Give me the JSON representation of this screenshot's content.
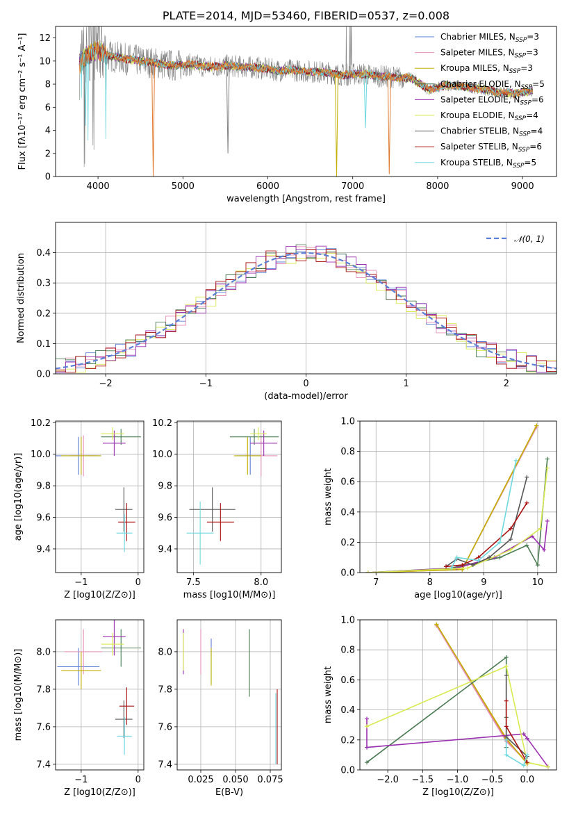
{
  "colors": {
    "Chabrier MILES": "#5b7fd6",
    "Salpeter MILES": "#e88fb8",
    "Kroupa MILES": "#c2b000",
    "Chabrier ELODIE": "#4a7a52",
    "Salpeter ELODIE": "#9a2eb0",
    "Kroupa ELODIE": "#d8ea50",
    "Chabrier STELIB": "#555555",
    "Salpeter STELIB": "#aa1010",
    "Kroupa STELIB": "#6ed8e0",
    "orange_model": "#e07a30",
    "data": "#808080",
    "normal": "#5b7fd6"
  },
  "chart_data": [
    {
      "type": "line",
      "title": "PLATE=2014, MJD=53460, FIBERID=0537, z=0.008",
      "xlabel": "wavelength [Angstrom, rest frame]",
      "ylabel": "Flux [fλ10⁻¹⁷ erg cm⁻² s⁻¹ A⁻¹]",
      "xlim": [
        3500,
        9400
      ],
      "ylim": [
        0,
        13
      ],
      "xticks": [
        "4000",
        "5000",
        "6000",
        "7000",
        "8000",
        "9000"
      ],
      "yticks": [
        "0",
        "2",
        "4",
        "6",
        "8",
        "10",
        "12"
      ],
      "legend_position": "top-right",
      "legend": [
        {
          "model": "Chabrier MILES",
          "n": "3"
        },
        {
          "model": "Salpeter MILES",
          "n": "3"
        },
        {
          "model": "Kroupa MILES",
          "n": "3"
        },
        {
          "model": "Chabrier ELODIE",
          "n": "5"
        },
        {
          "model": "Salpeter ELODIE",
          "n": "6"
        },
        {
          "model": "Kroupa ELODIE",
          "n": "4"
        },
        {
          "model": "Chabrier STELIB",
          "n": "4"
        },
        {
          "model": "Salpeter STELIB",
          "n": "6"
        },
        {
          "model": "Kroupa STELIB",
          "n": "5"
        }
      ],
      "continuum": {
        "x": [
          3780,
          3900,
          4000,
          4100,
          4300,
          4500,
          4700,
          4900,
          5100,
          5300,
          5500,
          5700,
          5900,
          6100,
          6300,
          6500,
          6700,
          6900,
          7100,
          7300,
          7500,
          7700,
          7900,
          8100,
          8300,
          8500,
          8700,
          8900,
          9100
        ],
        "y": [
          9.8,
          10.6,
          11.0,
          10.5,
          10.2,
          10.0,
          9.8,
          9.6,
          9.7,
          9.5,
          9.6,
          9.5,
          9.4,
          9.2,
          9.2,
          9.1,
          9.0,
          8.8,
          8.9,
          8.7,
          8.6,
          8.5,
          7.5,
          7.9,
          7.8,
          7.6,
          7.3,
          7.2,
          7.4
        ]
      },
      "dips": [
        {
          "model": "orange_model",
          "x": 4650,
          "y": 0.0
        },
        {
          "model": "Kroupa MILES",
          "x": 6810,
          "y": 0.0
        },
        {
          "model": "orange_model",
          "x": 7430,
          "y": 0.2
        },
        {
          "model": "Kroupa STELIB",
          "x": 7150,
          "y": 4.2
        },
        {
          "model": "data",
          "x": 5530,
          "y": 2.0
        }
      ],
      "grid": false
    },
    {
      "type": "line",
      "xlabel": "(data-model)/error",
      "ylabel": "Normed distribution",
      "xlim": [
        -2.5,
        2.5
      ],
      "ylim": [
        0,
        0.5
      ],
      "xticks": [
        "−2",
        "−1",
        "0",
        "1",
        "2"
      ],
      "yticks": [
        "0.0",
        "0.1",
        "0.2",
        "0.3",
        "0.4"
      ],
      "legend": [
        "𝒩(0, 1)"
      ],
      "legend_position": "top-right",
      "grid": true,
      "histogram_bin_width": 0.1,
      "series": [
        {
          "model": "Chabrier MILES",
          "shift": 0.0
        },
        {
          "model": "Salpeter MILES",
          "shift": 0.02
        },
        {
          "model": "Kroupa ELODIE",
          "shift": -0.01
        },
        {
          "model": "Chabrier ELODIE",
          "shift": 0.015
        },
        {
          "model": "Salpeter ELODIE",
          "shift": -0.02
        },
        {
          "model": "Salpeter STELIB",
          "shift": 0.01
        }
      ]
    },
    {
      "type": "scatter",
      "xlabel": "Z [log10(Z/Z⊙)]",
      "ylabel": "age  [log10(age/yr)]",
      "xlim": [
        -1.45,
        0.1
      ],
      "ylim": [
        9.25,
        10.21
      ],
      "xticks": [
        "−1",
        "0"
      ],
      "yticks": [
        "9.4",
        "9.6",
        "9.8",
        "10.0",
        "10.2"
      ],
      "grid": true,
      "points": [
        {
          "model": "Chabrier MILES",
          "x": -1.05,
          "y": 9.99,
          "dx": 0.4,
          "dy": 0.12
        },
        {
          "model": "Salpeter MILES",
          "x": -0.96,
          "y": 9.99,
          "dx": 0.25,
          "dy": 0.13
        },
        {
          "model": "Kroupa MILES",
          "x": -1.0,
          "y": 9.99,
          "dx": 0.35,
          "dy": 0.12
        },
        {
          "model": "Chabrier ELODIE",
          "x": -0.3,
          "y": 10.11,
          "dx": 0.35,
          "dy": 0.05
        },
        {
          "model": "Salpeter ELODIE",
          "x": -0.42,
          "y": 10.07,
          "dx": 0.2,
          "dy": 0.08
        },
        {
          "model": "Kroupa ELODIE",
          "x": -0.45,
          "y": 10.13,
          "dx": 0.2,
          "dy": 0.04
        },
        {
          "model": "Chabrier STELIB",
          "x": -0.25,
          "y": 9.65,
          "dx": 0.15,
          "dy": 0.14
        },
        {
          "model": "Salpeter STELIB",
          "x": -0.2,
          "y": 9.57,
          "dx": 0.15,
          "dy": 0.12
        },
        {
          "model": "Kroupa STELIB",
          "x": -0.24,
          "y": 9.5,
          "dx": 0.14,
          "dy": 0.12
        }
      ]
    },
    {
      "type": "scatter",
      "xlabel": "mass [log10(M/M⊙)]",
      "xlim": [
        7.38,
        8.15
      ],
      "ylim": [
        9.25,
        10.21
      ],
      "xticks": [
        "7.5",
        "8.0"
      ],
      "yticks": [
        "9.4",
        "9.6",
        "9.8",
        "10.0",
        "10.2"
      ],
      "grid": true,
      "points": [
        {
          "model": "Chabrier MILES",
          "x": 7.92,
          "y": 9.99,
          "dx": 0.1,
          "dy": 0.12
        },
        {
          "model": "Salpeter MILES",
          "x": 8.0,
          "y": 9.99,
          "dx": 0.12,
          "dy": 0.13
        },
        {
          "model": "Kroupa MILES",
          "x": 7.9,
          "y": 9.99,
          "dx": 0.1,
          "dy": 0.12
        },
        {
          "model": "Chabrier ELODIE",
          "x": 7.95,
          "y": 10.11,
          "dx": 0.18,
          "dy": 0.05
        },
        {
          "model": "Salpeter ELODIE",
          "x": 8.02,
          "y": 10.07,
          "dx": 0.1,
          "dy": 0.08
        },
        {
          "model": "Kroupa ELODIE",
          "x": 7.98,
          "y": 10.13,
          "dx": 0.06,
          "dy": 0.04
        },
        {
          "model": "Chabrier STELIB",
          "x": 7.64,
          "y": 9.65,
          "dx": 0.17,
          "dy": 0.14
        },
        {
          "model": "Salpeter STELIB",
          "x": 7.7,
          "y": 9.57,
          "dx": 0.1,
          "dy": 0.12
        },
        {
          "model": "Kroupa STELIB",
          "x": 7.55,
          "y": 9.5,
          "dx": 0.1,
          "dy": 0.2
        }
      ]
    },
    {
      "type": "line",
      "xlabel": "age  [log10(age/yr)]",
      "ylabel": "mass weight",
      "xlim": [
        6.7,
        10.35
      ],
      "ylim": [
        0,
        1
      ],
      "xticks": [
        "7",
        "8",
        "9",
        "10"
      ],
      "yticks": [
        "0.0",
        "0.2",
        "0.4",
        "0.6",
        "0.8",
        "1.0"
      ],
      "grid": true,
      "series": [
        {
          "model": "orange_model",
          "x": [
            6.85,
            8.6,
            9.98
          ],
          "y": [
            0.0,
            0.02,
            0.97
          ]
        },
        {
          "model": "Salpeter MILES",
          "x": [
            6.85,
            8.6,
            9.98
          ],
          "y": [
            0.0,
            0.02,
            0.96
          ]
        },
        {
          "model": "Kroupa MILES",
          "x": [
            6.85,
            8.6,
            9.98
          ],
          "y": [
            0.0,
            0.02,
            0.97
          ]
        },
        {
          "model": "Chabrier ELODIE",
          "x": [
            6.85,
            8.4,
            9.3,
            9.8,
            10.0,
            10.18
          ],
          "y": [
            0.0,
            0.03,
            0.1,
            0.18,
            0.05,
            0.75
          ]
        },
        {
          "model": "Salpeter ELODIE",
          "x": [
            6.85,
            8.5,
            9.2,
            9.9,
            10.12,
            10.18
          ],
          "y": [
            0.0,
            0.03,
            0.1,
            0.24,
            0.15,
            0.34
          ]
        },
        {
          "model": "Kroupa ELODIE",
          "x": [
            6.85,
            8.7,
            9.5,
            10.05,
            10.18
          ],
          "y": [
            0.0,
            0.03,
            0.15,
            0.29,
            0.69
          ]
        },
        {
          "model": "Chabrier STELIB",
          "x": [
            8.3,
            8.5,
            8.8,
            9.1,
            9.5,
            9.8
          ],
          "y": [
            0.04,
            0.09,
            0.05,
            0.1,
            0.22,
            0.63
          ]
        },
        {
          "model": "Salpeter STELIB",
          "x": [
            8.3,
            8.6,
            8.9,
            9.5,
            9.8
          ],
          "y": [
            0.04,
            0.05,
            0.1,
            0.29,
            0.46
          ]
        },
        {
          "model": "Kroupa STELIB",
          "x": [
            8.4,
            8.5,
            8.9,
            9.3,
            9.6
          ],
          "y": [
            0.03,
            0.1,
            0.08,
            0.2,
            0.74
          ]
        }
      ]
    },
    {
      "type": "scatter",
      "xlabel": "Z [log10(Z/Z⊙)]",
      "ylabel": "mass [log10(M/M⊙)]",
      "xlim": [
        -1.45,
        0.1
      ],
      "ylim": [
        7.37,
        8.17
      ],
      "xticks": [
        "−1",
        "0"
      ],
      "yticks": [
        "7.4",
        "7.6",
        "7.8",
        "8.0"
      ],
      "grid": true,
      "points": [
        {
          "model": "Chabrier MILES",
          "x": -1.05,
          "y": 7.92,
          "dx": 0.37,
          "dy": 0.1
        },
        {
          "model": "Salpeter MILES",
          "x": -0.96,
          "y": 8.0,
          "dx": 0.33,
          "dy": 0.12
        },
        {
          "model": "Kroupa MILES",
          "x": -1.0,
          "y": 7.9,
          "dx": 0.35,
          "dy": 0.1
        },
        {
          "model": "Chabrier ELODIE",
          "x": -0.3,
          "y": 8.02,
          "dx": 0.35,
          "dy": 0.1
        },
        {
          "model": "Salpeter ELODIE",
          "x": -0.42,
          "y": 8.08,
          "dx": 0.2,
          "dy": 0.1
        },
        {
          "model": "Kroupa ELODIE",
          "x": -0.45,
          "y": 8.04,
          "dx": 0.2,
          "dy": 0.06
        },
        {
          "model": "Chabrier STELIB",
          "x": -0.25,
          "y": 7.64,
          "dx": 0.15,
          "dy": 0.1
        },
        {
          "model": "Salpeter STELIB",
          "x": -0.2,
          "y": 7.71,
          "dx": 0.13,
          "dy": 0.1
        },
        {
          "model": "Kroupa STELIB",
          "x": -0.24,
          "y": 7.55,
          "dx": 0.13,
          "dy": 0.1
        }
      ]
    },
    {
      "type": "scatter",
      "xlabel": "E(B-V)",
      "xlim": [
        0.008,
        0.083
      ],
      "ylim": [
        7.37,
        8.17
      ],
      "xticks": [
        "0.025",
        "0.050",
        "0.075"
      ],
      "yticks": [
        "7.4",
        "7.6",
        "7.8",
        "8.0"
      ],
      "grid": true,
      "points": [
        {
          "model": "Salpeter ELODIE",
          "x": 0.0125,
          "y": 8.0,
          "dx": 0.0,
          "dy": 0.12
        },
        {
          "model": "Kroupa ELODIE",
          "x": 0.0125,
          "y": 8.0,
          "dx": 0.0,
          "dy": 0.1
        },
        {
          "model": "Salpeter MILES",
          "x": 0.025,
          "y": 8.0,
          "dx": 0.0,
          "dy": 0.12
        },
        {
          "model": "Chabrier MILES",
          "x": 0.0325,
          "y": 7.95,
          "dx": 0.0,
          "dy": 0.12
        },
        {
          "model": "Kroupa MILES",
          "x": 0.0325,
          "y": 7.92,
          "dx": 0.0,
          "dy": 0.1
        },
        {
          "model": "Chabrier ELODIE",
          "x": 0.06,
          "y": 7.94,
          "dx": 0.0,
          "dy": 0.18
        },
        {
          "model": "Salpeter STELIB",
          "x": 0.08,
          "y": 7.6,
          "dx": 0.0,
          "dy": 0.2
        },
        {
          "model": "Kroupa STELIB",
          "x": 0.079,
          "y": 7.59,
          "dx": 0.0,
          "dy": 0.19
        }
      ]
    },
    {
      "type": "line",
      "xlabel": "Z [log10(Z/Z⊙)]",
      "ylabel": "mass weight",
      "xlim": [
        -2.4,
        0.42
      ],
      "ylim": [
        0,
        1
      ],
      "xticks": [
        "−2.0",
        "−1.5",
        "−1.0",
        "−0.5",
        "0.0",
        "0.5"
      ],
      "yticks": [
        "0.0",
        "0.2",
        "0.4",
        "0.6",
        "0.8",
        "1.0"
      ],
      "grid": true,
      "series": [
        {
          "model": "orange_model",
          "x": [
            -1.3,
            -0.3,
            0.0
          ],
          "y": [
            0.97,
            0.2,
            0.05
          ]
        },
        {
          "model": "Salpeter MILES",
          "x": [
            -1.3,
            -0.3,
            0.0
          ],
          "y": [
            0.96,
            0.19,
            0.05
          ]
        },
        {
          "model": "Kroupa MILES",
          "x": [
            -1.3,
            -0.3,
            0.0
          ],
          "y": [
            0.97,
            0.21,
            0.04
          ]
        },
        {
          "model": "Chabrier ELODIE",
          "x": [
            -2.3,
            -0.3,
            -0.3,
            -0.3
          ],
          "y": [
            0.05,
            0.75,
            0.35,
            0.15
          ]
        },
        {
          "model": "Salpeter ELODIE",
          "x": [
            -2.3,
            -2.3,
            -0.05,
            0.0,
            0.3
          ],
          "y": [
            0.34,
            0.15,
            0.24,
            0.21,
            0.02
          ]
        },
        {
          "model": "Kroupa ELODIE",
          "x": [
            -2.3,
            -0.3,
            0.0,
            0.3
          ],
          "y": [
            0.29,
            0.69,
            0.05,
            0.02
          ]
        },
        {
          "model": "Chabrier STELIB",
          "x": [
            -0.3,
            -0.3,
            0.0
          ],
          "y": [
            0.63,
            0.22,
            0.09
          ]
        },
        {
          "model": "Salpeter STELIB",
          "x": [
            -0.3,
            -0.3,
            0.0
          ],
          "y": [
            0.46,
            0.29,
            0.05
          ]
        },
        {
          "model": "Kroupa STELIB",
          "x": [
            -0.3,
            -0.3,
            -0.05,
            0.0
          ],
          "y": [
            0.2,
            0.1,
            0.03,
            0.1
          ]
        }
      ]
    }
  ]
}
